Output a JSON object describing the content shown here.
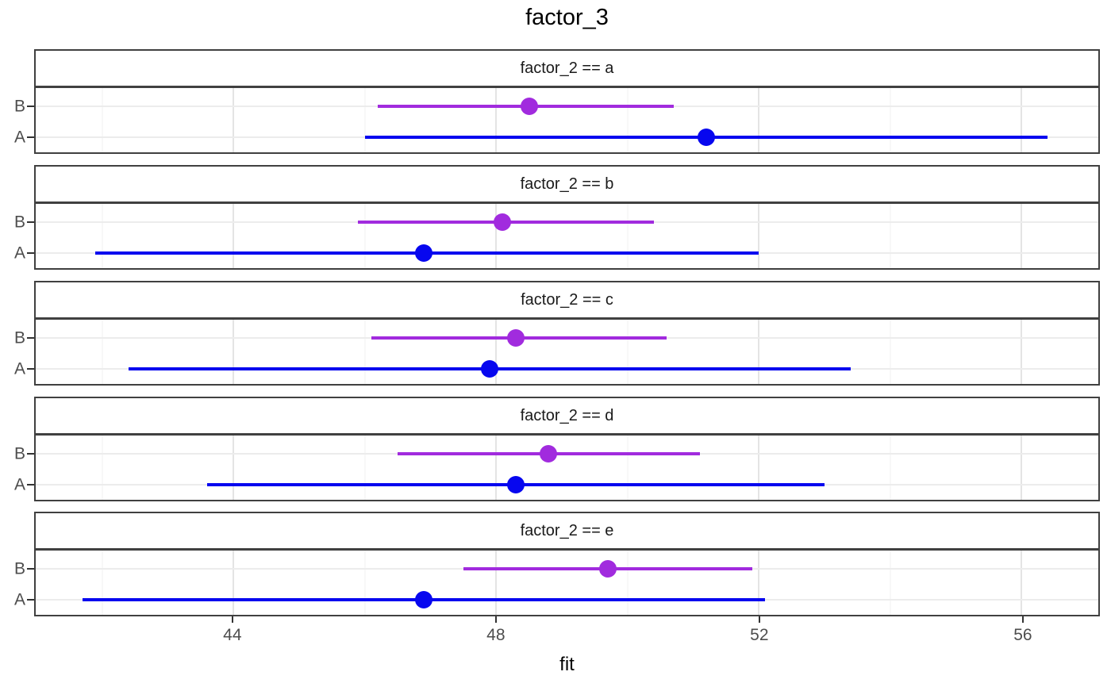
{
  "title": "factor_3",
  "xlabel": "fit",
  "chart_data": {
    "type": "scatter",
    "subtype": "faceted-horizontal-pointrange",
    "title": "factor_3",
    "xlabel": "fit",
    "ylabel": "",
    "xlim": [
      40.99,
      57.17
    ],
    "x_major_ticks": [
      44,
      48,
      52,
      56
    ],
    "x_minor_gridlines": [
      42,
      46,
      50,
      54
    ],
    "grid": true,
    "legend": false,
    "y_categories": [
      "B",
      "A"
    ],
    "colors": {
      "A": "#0707ef",
      "B": "#a12bde"
    },
    "facets": [
      {
        "label": "factor_2 == a",
        "rows": [
          {
            "cat": "B",
            "fit": 48.5,
            "lo": 46.2,
            "hi": 50.7
          },
          {
            "cat": "A",
            "fit": 51.2,
            "lo": 46.0,
            "hi": 56.4
          }
        ]
      },
      {
        "label": "factor_2 == b",
        "rows": [
          {
            "cat": "B",
            "fit": 48.1,
            "lo": 45.9,
            "hi": 50.4
          },
          {
            "cat": "A",
            "fit": 46.9,
            "lo": 41.9,
            "hi": 52.0
          }
        ]
      },
      {
        "label": "factor_2 == c",
        "rows": [
          {
            "cat": "B",
            "fit": 48.3,
            "lo": 46.1,
            "hi": 50.6
          },
          {
            "cat": "A",
            "fit": 47.9,
            "lo": 42.4,
            "hi": 53.4
          }
        ]
      },
      {
        "label": "factor_2 == d",
        "rows": [
          {
            "cat": "B",
            "fit": 48.8,
            "lo": 46.5,
            "hi": 51.1
          },
          {
            "cat": "A",
            "fit": 48.3,
            "lo": 43.6,
            "hi": 53.0
          }
        ]
      },
      {
        "label": "factor_2 == e",
        "rows": [
          {
            "cat": "B",
            "fit": 49.7,
            "lo": 47.5,
            "hi": 51.9
          },
          {
            "cat": "A",
            "fit": 46.9,
            "lo": 41.7,
            "hi": 52.1
          }
        ]
      }
    ],
    "layout": {
      "facet_tops": [
        62,
        208,
        354,
        500,
        645
      ],
      "row_offsets": [
        23,
        62
      ]
    }
  }
}
